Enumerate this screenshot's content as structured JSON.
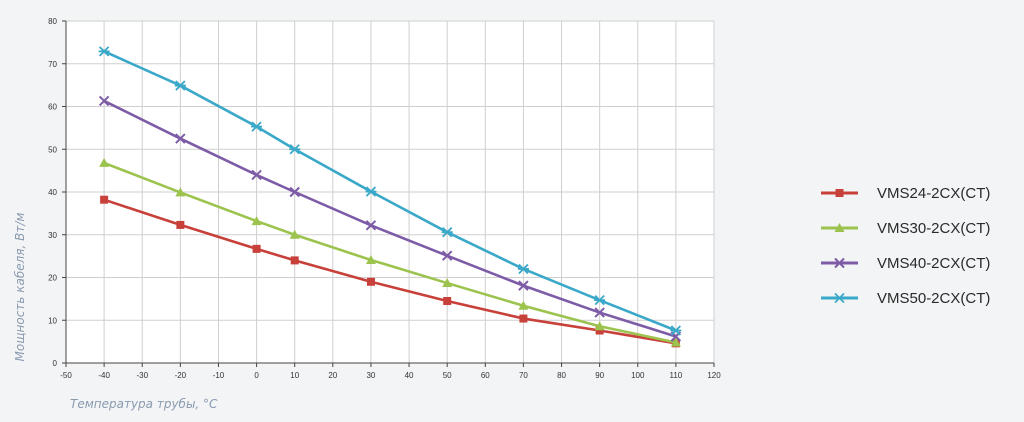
{
  "chart_data": {
    "type": "line",
    "xlabel": "Температура трубы, °C",
    "ylabel": "Мощность кабеля, Вт/м",
    "xlim": [
      -50,
      120
    ],
    "ylim": [
      0,
      80
    ],
    "x_ticks": [
      -50,
      -40,
      -30,
      -20,
      -10,
      0,
      10,
      20,
      30,
      40,
      50,
      60,
      70,
      80,
      90,
      100,
      110,
      120
    ],
    "y_ticks": [
      0,
      10,
      20,
      30,
      40,
      50,
      60,
      70,
      80
    ],
    "grid": true,
    "legend_position": "right",
    "x": [
      -40,
      -20,
      0,
      10,
      30,
      50,
      70,
      90,
      110
    ],
    "series": [
      {
        "name": "VMS24-2CX(CT)",
        "color": "#c8403a",
        "marker": "square",
        "values": [
          38.2,
          32.3,
          26.7,
          24.0,
          19.0,
          14.5,
          10.4,
          7.6,
          4.6
        ]
      },
      {
        "name": "VMS30-2CX(CT)",
        "color": "#9cc34e",
        "marker": "triangle",
        "values": [
          46.8,
          39.9,
          33.2,
          30.0,
          24.1,
          18.7,
          13.4,
          8.6,
          4.8
        ]
      },
      {
        "name": "VMS40-2CX(CT)",
        "color": "#7d5ba6",
        "marker": "x",
        "values": [
          61.3,
          52.5,
          44.0,
          40.0,
          32.2,
          25.1,
          18.1,
          11.8,
          6.2
        ]
      },
      {
        "name": "VMS50-2CX(CT)",
        "color": "#3aa8c8",
        "marker": "star",
        "values": [
          72.9,
          64.9,
          55.3,
          50.0,
          40.1,
          30.6,
          22.0,
          14.7,
          7.6
        ]
      }
    ]
  }
}
